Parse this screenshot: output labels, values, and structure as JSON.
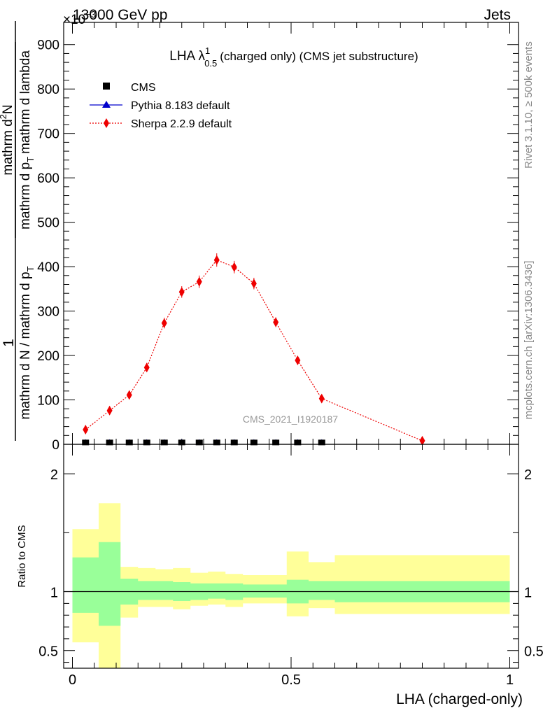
{
  "header": {
    "energy_label": "13000 GeV pp",
    "process_label": "Jets",
    "exponent_label": "×10",
    "exponent_sup": "−3"
  },
  "side_labels": {
    "rivet": "Rivet 3.1.10, ≥ 500k events",
    "mcplots": "mcplots.cern.ch [arXiv:1306.3436]"
  },
  "chart_data": [
    {
      "type": "line",
      "title_main": "LHA λ",
      "title_sup": "1",
      "title_sub": "0.5",
      "title_rest": "(charged only) (CMS jet substructure)",
      "ylabel_parts": [
        "1",
        "mathrm d N / mathrm d p",
        "T",
        "mathrm d N",
        "mathrm d p",
        "T",
        "mathrm d lambda"
      ],
      "ylabel_numerator_1": "1",
      "ylabel_denominator_1": "mathrm d N / mathrm d p",
      "ylabel_denominator_1_sub": "T",
      "ylabel_numerator_2": "mathrm d",
      "ylabel_numerator_2_sup": "2",
      "ylabel_numerator_2_rest": "N",
      "ylabel_denominator_2": "mathrm d p",
      "ylabel_denominator_2_sub": "T",
      "ylabel_denominator_2_rest": "mathrm d lambda",
      "xlim": [
        -0.02,
        1.02
      ],
      "ylim": [
        0,
        950
      ],
      "yticks": [
        0,
        100,
        200,
        300,
        400,
        500,
        600,
        700,
        800,
        900
      ],
      "ytick_labels": [
        "0",
        "100",
        "200",
        "300",
        "400",
        "500",
        "600",
        "700",
        "800",
        "900"
      ],
      "watermark": "CMS_2021_I1920187",
      "legend": [
        "CMS",
        "Pythia 8.183 default",
        "Sherpa 2.2.9 default"
      ],
      "series": [
        {
          "name": "CMS",
          "color": "#000000",
          "x": [
            0.03,
            0.085,
            0.13,
            0.17,
            0.21,
            0.25,
            0.29,
            0.33,
            0.37,
            0.415,
            0.465,
            0.515,
            0.57
          ],
          "y": [
            1,
            1,
            1,
            1,
            1,
            1,
            1,
            1,
            1,
            1,
            1,
            1,
            1
          ]
        },
        {
          "name": "Pythia 8.183 default",
          "color": "#0000cc",
          "x": [
            0.03,
            0.085,
            0.13,
            0.17,
            0.21,
            0.25,
            0.29,
            0.33,
            0.37,
            0.415,
            0.465,
            0.515,
            0.57
          ],
          "y": [
            0.5,
            0.5,
            0.5,
            0.5,
            0.5,
            0.5,
            0.5,
            0.5,
            0.5,
            0.5,
            0.5,
            0.5,
            0.5
          ]
        },
        {
          "name": "Sherpa 2.2.9 default",
          "color": "#ee0000",
          "x": [
            0.03,
            0.085,
            0.13,
            0.17,
            0.21,
            0.25,
            0.29,
            0.33,
            0.37,
            0.415,
            0.465,
            0.515,
            0.57,
            0.8
          ],
          "y": [
            33,
            76,
            111,
            173,
            273,
            343,
            366,
            415,
            399,
            362,
            275,
            189,
            103,
            8
          ],
          "err": [
            5,
            6,
            8,
            10,
            12,
            13,
            14,
            15,
            14,
            13,
            11,
            9,
            5,
            3
          ]
        }
      ]
    },
    {
      "type": "area",
      "ylabel": "Ratio to CMS",
      "xlabel": "LHA (charged-only)",
      "xlim": [
        -0.02,
        1.02
      ],
      "ylim": [
        0.35,
        2.25
      ],
      "xticks": [
        0,
        0.5,
        1
      ],
      "xtick_labels": [
        "0",
        "0.5",
        "1"
      ],
      "yticks": [
        0.5,
        1,
        2
      ],
      "ytick_labels": [
        "0.5",
        "1",
        "2"
      ],
      "reference": 1,
      "bin_edges": [
        0,
        0.06,
        0.11,
        0.15,
        0.19,
        0.23,
        0.27,
        0.31,
        0.35,
        0.39,
        0.44,
        0.49,
        0.54,
        0.6,
        1.0
      ],
      "green_band": {
        "low": [
          0.82,
          0.71,
          0.89,
          0.93,
          0.93,
          0.92,
          0.93,
          0.94,
          0.93,
          0.95,
          0.95,
          0.9,
          0.93,
          0.91
        ],
        "high": [
          1.29,
          1.42,
          1.11,
          1.09,
          1.09,
          1.08,
          1.07,
          1.07,
          1.07,
          1.06,
          1.06,
          1.1,
          1.09,
          1.09
        ]
      },
      "yellow_band": {
        "low": [
          0.57,
          0.3,
          0.78,
          0.87,
          0.87,
          0.85,
          0.88,
          0.89,
          0.87,
          0.9,
          0.9,
          0.79,
          0.86,
          0.81
        ],
        "high": [
          1.53,
          1.75,
          1.21,
          1.2,
          1.19,
          1.2,
          1.16,
          1.17,
          1.15,
          1.14,
          1.14,
          1.34,
          1.25,
          1.31
        ]
      },
      "green_color": "#99ff99",
      "yellow_color": "#ffff99"
    }
  ]
}
